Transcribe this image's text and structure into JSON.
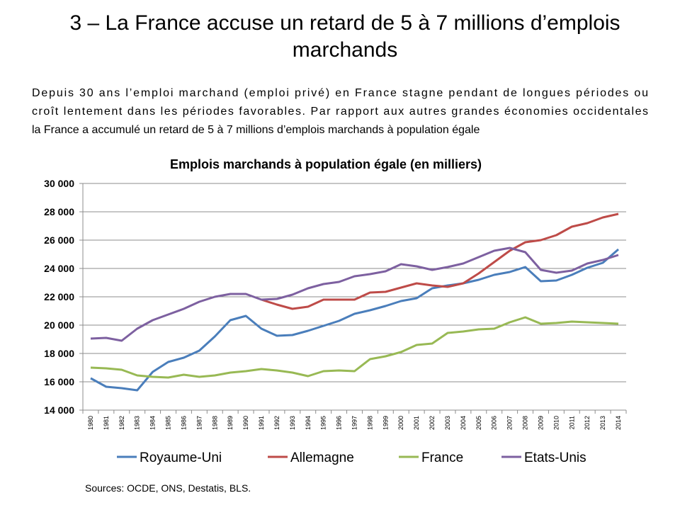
{
  "slide": {
    "title": [
      "3 – La France accuse un retard de 5 à 7 millions d’emplois",
      "marchands"
    ],
    "body": [
      "Depuis 30 ans l’emploi marchand (emploi privé) en France stagne pendant de longues périodes ou",
      "croît lentement dans les périodes favorables. Par rapport aux autres grandes économies occidentales",
      "la France a accumulé un retard de 5 à 7 millions d’emplois marchands à population égale"
    ],
    "source": "Sources: OCDE, ONS, Destatis, BLS."
  },
  "chart_data": {
    "type": "line",
    "title": "Emplois marchands à population égale (en milliers)",
    "categories": [
      "1980",
      "1981",
      "1982",
      "1983",
      "1984",
      "1985",
      "1986",
      "1987",
      "1988",
      "1989",
      "1990",
      "1991",
      "1992",
      "1993",
      "1994",
      "1995",
      "1996",
      "1997",
      "1998",
      "1999",
      "2000",
      "2001",
      "2002",
      "2003",
      "2004",
      "2005",
      "2006",
      "2007",
      "2008",
      "2009",
      "2010",
      "2011",
      "2012",
      "2013",
      "2014"
    ],
    "series": [
      {
        "name": "Royaume-Uni",
        "color": "#4a7ebb",
        "values": [
          16250,
          15650,
          15550,
          15400,
          16700,
          17400,
          17700,
          18200,
          19200,
          20350,
          20650,
          19750,
          19250,
          19300,
          19600,
          19950,
          20300,
          20800,
          21050,
          21350,
          21700,
          21900,
          22600,
          22800,
          22950,
          23200,
          23550,
          23750,
          24100,
          23100,
          23150,
          23550,
          24050,
          24400,
          25350
        ]
      },
      {
        "name": "Allemagne",
        "color": "#be4b48",
        "values": [
          null,
          null,
          null,
          null,
          null,
          null,
          null,
          null,
          null,
          null,
          null,
          21800,
          21450,
          21150,
          21300,
          21800,
          21800,
          21800,
          22300,
          22350,
          22650,
          22950,
          22800,
          22700,
          22950,
          23650,
          24450,
          25250,
          25850,
          26000,
          26350,
          26950,
          27200,
          27600,
          27850
        ]
      },
      {
        "name": "France",
        "color": "#98b954",
        "values": [
          17000,
          16950,
          16850,
          16450,
          16350,
          16300,
          16500,
          16350,
          16450,
          16650,
          16750,
          16900,
          16800,
          16650,
          16400,
          16750,
          16800,
          16750,
          17600,
          17800,
          18100,
          18600,
          18700,
          19450,
          19550,
          19700,
          19750,
          20200,
          20550,
          20100,
          20150,
          20250,
          20200,
          20150,
          20100
        ]
      },
      {
        "name": "Etats-Unis",
        "color": "#7d60a0",
        "values": [
          19050,
          19100,
          18900,
          19750,
          20350,
          20750,
          21150,
          21650,
          22000,
          22200,
          22200,
          21800,
          21850,
          22150,
          22600,
          22900,
          23050,
          23450,
          23600,
          23800,
          24300,
          24150,
          23900,
          24100,
          24350,
          24800,
          25250,
          25450,
          25150,
          23900,
          23700,
          23850,
          24350,
          24600,
          24950
        ]
      }
    ],
    "ylim": [
      14000,
      30000
    ],
    "yticks": [
      {
        "value": 14000,
        "label": "14 000"
      },
      {
        "value": 16000,
        "label": "16 000"
      },
      {
        "value": 18000,
        "label": "18 000"
      },
      {
        "value": 20000,
        "label": "20 000"
      },
      {
        "value": 22000,
        "label": "22 000"
      },
      {
        "value": 24000,
        "label": "24 000"
      },
      {
        "value": 26000,
        "label": "26 000"
      },
      {
        "value": 28000,
        "label": "28 000"
      },
      {
        "value": 30000,
        "label": "30 000"
      }
    ],
    "grid": true,
    "legend": "bottom"
  }
}
